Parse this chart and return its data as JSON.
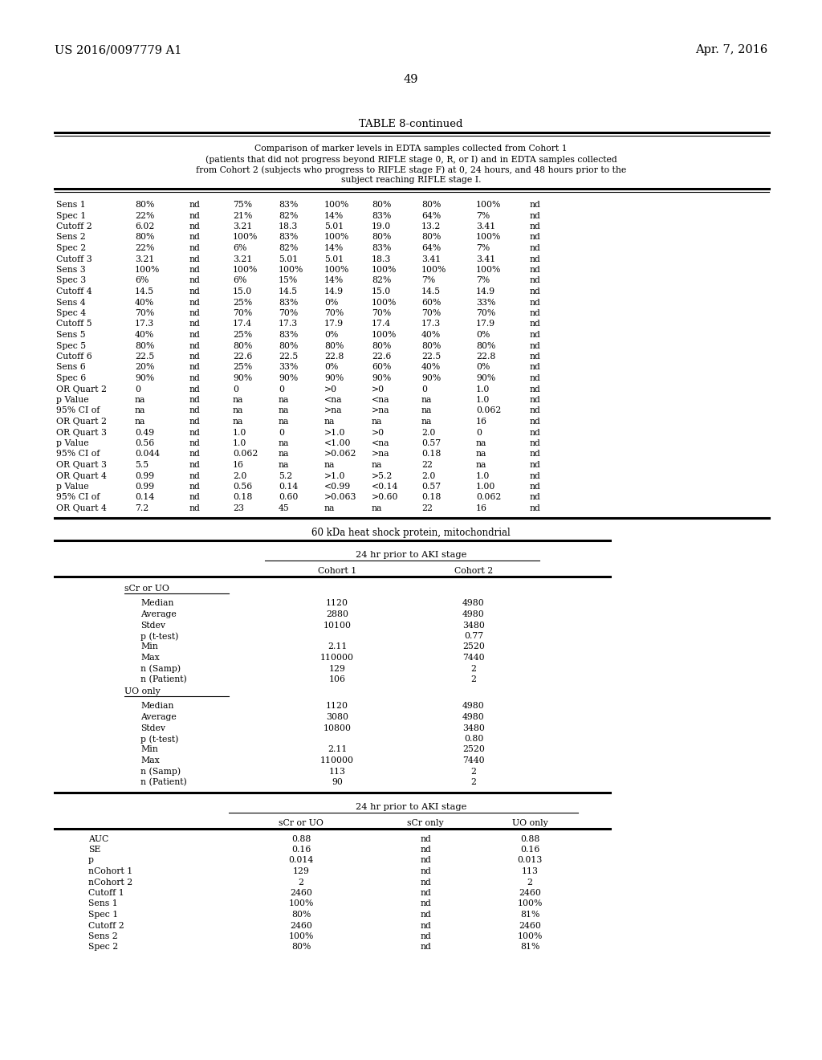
{
  "header_left": "US 2016/0097779 A1",
  "header_right": "Apr. 7, 2016",
  "page_number": "49",
  "table_title": "TABLE 8-continued",
  "table_caption_lines": [
    "Comparison of marker levels in EDTA samples collected from Cohort 1",
    "(patients that did not progress beyond RIFLE stage 0, R, or I) and in EDTA samples collected",
    "from Cohort 2 (subjects who progress to RIFLE stage F) at 0, 24 hours, and 48 hours prior to the",
    "subject reaching RIFLE stage I."
  ],
  "table1_rows": [
    [
      "Sens 1",
      "80%",
      "nd",
      "75%",
      "83%",
      "100%",
      "80%",
      "80%",
      "100%",
      "nd"
    ],
    [
      "Spec 1",
      "22%",
      "nd",
      "21%",
      "82%",
      "14%",
      "83%",
      "64%",
      "7%",
      "nd"
    ],
    [
      "Cutoff 2",
      "6.02",
      "nd",
      "3.21",
      "18.3",
      "5.01",
      "19.0",
      "13.2",
      "3.41",
      "nd"
    ],
    [
      "Sens 2",
      "80%",
      "nd",
      "100%",
      "83%",
      "100%",
      "80%",
      "80%",
      "100%",
      "nd"
    ],
    [
      "Spec 2",
      "22%",
      "nd",
      "6%",
      "82%",
      "14%",
      "83%",
      "64%",
      "7%",
      "nd"
    ],
    [
      "Cutoff 3",
      "3.21",
      "nd",
      "3.21",
      "5.01",
      "5.01",
      "18.3",
      "3.41",
      "3.41",
      "nd"
    ],
    [
      "Sens 3",
      "100%",
      "nd",
      "100%",
      "100%",
      "100%",
      "100%",
      "100%",
      "100%",
      "nd"
    ],
    [
      "Spec 3",
      "6%",
      "nd",
      "6%",
      "15%",
      "14%",
      "82%",
      "7%",
      "7%",
      "nd"
    ],
    [
      "Cutoff 4",
      "14.5",
      "nd",
      "15.0",
      "14.5",
      "14.9",
      "15.0",
      "14.5",
      "14.9",
      "nd"
    ],
    [
      "Sens 4",
      "40%",
      "nd",
      "25%",
      "83%",
      "0%",
      "100%",
      "60%",
      "33%",
      "nd"
    ],
    [
      "Spec 4",
      "70%",
      "nd",
      "70%",
      "70%",
      "70%",
      "70%",
      "70%",
      "70%",
      "nd"
    ],
    [
      "Cutoff 5",
      "17.3",
      "nd",
      "17.4",
      "17.3",
      "17.9",
      "17.4",
      "17.3",
      "17.9",
      "nd"
    ],
    [
      "Sens 5",
      "40%",
      "nd",
      "25%",
      "83%",
      "0%",
      "100%",
      "40%",
      "0%",
      "nd"
    ],
    [
      "Spec 5",
      "80%",
      "nd",
      "80%",
      "80%",
      "80%",
      "80%",
      "80%",
      "80%",
      "nd"
    ],
    [
      "Cutoff 6",
      "22.5",
      "nd",
      "22.6",
      "22.5",
      "22.8",
      "22.6",
      "22.5",
      "22.8",
      "nd"
    ],
    [
      "Sens 6",
      "20%",
      "nd",
      "25%",
      "33%",
      "0%",
      "60%",
      "40%",
      "0%",
      "nd"
    ],
    [
      "Spec 6",
      "90%",
      "nd",
      "90%",
      "90%",
      "90%",
      "90%",
      "90%",
      "90%",
      "nd"
    ],
    [
      "OR Quart 2",
      "0",
      "nd",
      "0",
      "0",
      ">0",
      ">0",
      "0",
      "1.0",
      "nd"
    ],
    [
      "p Value",
      "na",
      "nd",
      "na",
      "na",
      "<na",
      "<na",
      "na",
      "1.0",
      "nd"
    ],
    [
      "95% CI of",
      "na",
      "nd",
      "na",
      "na",
      ">na",
      ">na",
      "na",
      "0.062",
      "nd"
    ],
    [
      "OR Quart 2",
      "na",
      "nd",
      "na",
      "na",
      "na",
      "na",
      "na",
      "16",
      "nd"
    ],
    [
      "OR Quart 3",
      "0.49",
      "nd",
      "1.0",
      "0",
      ">1.0",
      ">0",
      "2.0",
      "0",
      "nd"
    ],
    [
      "p Value",
      "0.56",
      "nd",
      "1.0",
      "na",
      "<1.00",
      "<na",
      "0.57",
      "na",
      "nd"
    ],
    [
      "95% CI of",
      "0.044",
      "nd",
      "0.062",
      "na",
      ">0.062",
      ">na",
      "0.18",
      "na",
      "nd"
    ],
    [
      "OR Quart 3",
      "5.5",
      "nd",
      "16",
      "na",
      "na",
      "na",
      "22",
      "na",
      "nd"
    ],
    [
      "OR Quart 4",
      "0.99",
      "nd",
      "2.0",
      "5.2",
      ">1.0",
      ">5.2",
      "2.0",
      "1.0",
      "nd"
    ],
    [
      "p Value",
      "0.99",
      "nd",
      "0.56",
      "0.14",
      "<0.99",
      "<0.14",
      "0.57",
      "1.00",
      "nd"
    ],
    [
      "95% CI of",
      "0.14",
      "nd",
      "0.18",
      "0.60",
      ">0.063",
      ">0.60",
      "0.18",
      "0.062",
      "nd"
    ],
    [
      "OR Quart 4",
      "7.2",
      "nd",
      "23",
      "45",
      "na",
      "na",
      "22",
      "16",
      "nd"
    ]
  ],
  "section2_title": "60 kDa heat shock protein, mitochondrial",
  "section2_subtitle": "24 hr prior to AKI stage",
  "cohort1_label": "Cohort 1",
  "cohort2_label": "Cohort 2",
  "scr_uo_label": "sCr or UO",
  "scr_uo_rows": [
    [
      "Median",
      "1120",
      "4980"
    ],
    [
      "Average",
      "2880",
      "4980"
    ],
    [
      "Stdev",
      "10100",
      "3480"
    ],
    [
      "p (t-test)",
      "",
      "0.77"
    ],
    [
      "Min",
      "2.11",
      "2520"
    ],
    [
      "Max",
      "110000",
      "7440"
    ],
    [
      "n (Samp)",
      "129",
      "2"
    ],
    [
      "n (Patient)",
      "106",
      "2"
    ]
  ],
  "uo_only_label": "UO only",
  "uo_only_rows": [
    [
      "Median",
      "1120",
      "4980"
    ],
    [
      "Average",
      "3080",
      "4980"
    ],
    [
      "Stdev",
      "10800",
      "3480"
    ],
    [
      "p (t-test)",
      "",
      "0.80"
    ],
    [
      "Min",
      "2.11",
      "2520"
    ],
    [
      "Max",
      "110000",
      "7440"
    ],
    [
      "n (Samp)",
      "113",
      "2"
    ],
    [
      "n (Patient)",
      "90",
      "2"
    ]
  ],
  "section3_subtitle": "24 hr prior to AKI stage",
  "section3_cols": [
    "sCr or UO",
    "sCr only",
    "UO only"
  ],
  "section3_rows": [
    [
      "AUC",
      "0.88",
      "nd",
      "0.88"
    ],
    [
      "SE",
      "0.16",
      "nd",
      "0.16"
    ],
    [
      "p",
      "0.014",
      "nd",
      "0.013"
    ],
    [
      "nCohort 1",
      "129",
      "nd",
      "113"
    ],
    [
      "nCohort 2",
      "2",
      "nd",
      "2"
    ],
    [
      "Cutoff 1",
      "2460",
      "nd",
      "2460"
    ],
    [
      "Sens 1",
      "100%",
      "nd",
      "100%"
    ],
    [
      "Spec 1",
      "80%",
      "nd",
      "81%"
    ],
    [
      "Cutoff 2",
      "2460",
      "nd",
      "2460"
    ],
    [
      "Sens 2",
      "100%",
      "nd",
      "100%"
    ],
    [
      "Spec 2",
      "80%",
      "nd",
      "81%"
    ]
  ],
  "bg_color": "#ffffff",
  "text_color": "#000000"
}
